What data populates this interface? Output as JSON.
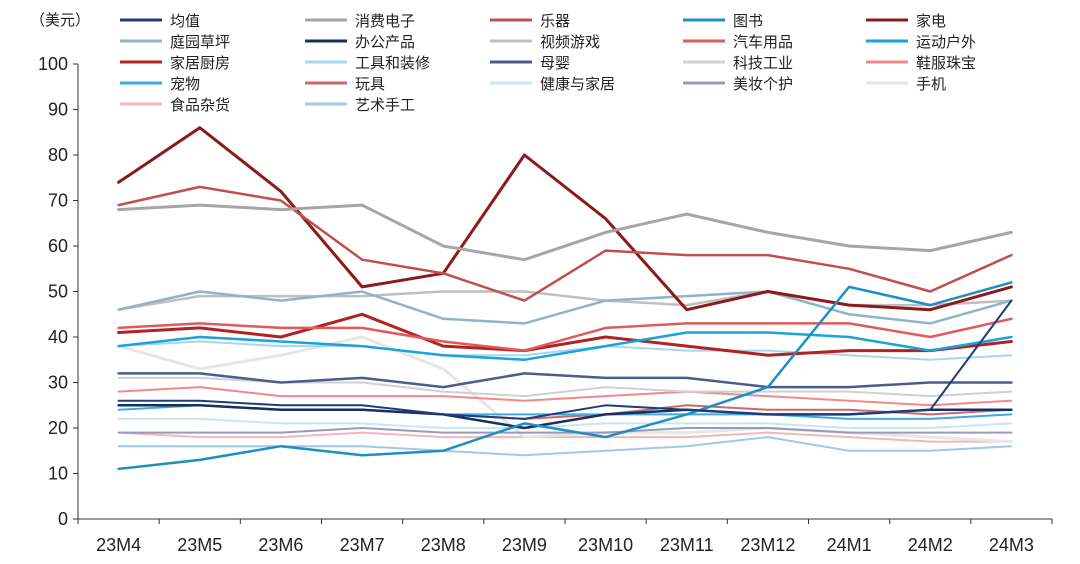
{
  "chart_data": {
    "type": "line",
    "unit": "（美元）",
    "categories": [
      "23M4",
      "23M5",
      "23M6",
      "23M7",
      "23M8",
      "23M9",
      "23M10",
      "23M11",
      "23M12",
      "24M1",
      "24M2",
      "24M3"
    ],
    "ylim": [
      0,
      100
    ],
    "yticks": [
      0,
      10,
      20,
      30,
      40,
      50,
      60,
      70,
      80,
      90,
      100
    ],
    "grid": false,
    "legend_position": "top",
    "series": [
      {
        "name": "均值",
        "color": "#1f3d7a",
        "width": 2,
        "values": [
          26,
          26,
          25,
          25,
          23,
          22,
          25,
          24,
          23,
          23,
          24,
          48
        ]
      },
      {
        "name": "消费电子",
        "color": "#a6a6a6",
        "width": 3,
        "values": [
          68,
          69,
          68,
          69,
          60,
          57,
          63,
          67,
          63,
          60,
          59,
          63
        ]
      },
      {
        "name": "乐器",
        "color": "#c0504d",
        "width": 2.5,
        "values": [
          69,
          73,
          70,
          57,
          54,
          48,
          59,
          58,
          58,
          55,
          50,
          58
        ]
      },
      {
        "name": "图书",
        "color": "#1f8ec1",
        "width": 2.5,
        "values": [
          11,
          13,
          16,
          14,
          15,
          21,
          18,
          23,
          29,
          51,
          47,
          52
        ]
      },
      {
        "name": "家电",
        "color": "#8b1a1a",
        "width": 3,
        "values": [
          74,
          86,
          72,
          51,
          54,
          80,
          66,
          46,
          50,
          47,
          46,
          51
        ]
      },
      {
        "name": "庭园草坪",
        "color": "#8db4c8",
        "width": 2.5,
        "values": [
          46,
          50,
          48,
          50,
          44,
          43,
          48,
          49,
          50,
          45,
          43,
          48
        ]
      },
      {
        "name": "办公产品",
        "color": "#17305e",
        "width": 2.5,
        "values": [
          25,
          25,
          24,
          24,
          23,
          20,
          23,
          24,
          23,
          23,
          24,
          24
        ]
      },
      {
        "name": "视频游戏",
        "color": "#bfbfbf",
        "width": 2.5,
        "values": [
          46,
          49,
          49,
          49,
          50,
          50,
          48,
          47,
          50,
          47,
          47,
          48
        ]
      },
      {
        "name": "汽车用品",
        "color": "#e05a5a",
        "width": 2.5,
        "values": [
          42,
          43,
          42,
          42,
          39,
          37,
          42,
          43,
          43,
          43,
          40,
          44
        ]
      },
      {
        "name": "运动户外",
        "color": "#1aa3d9",
        "width": 2.5,
        "values": [
          38,
          40,
          39,
          38,
          36,
          35,
          38,
          41,
          41,
          40,
          37,
          40
        ]
      },
      {
        "name": "家居厨房",
        "color": "#b22222",
        "width": 3,
        "values": [
          41,
          42,
          40,
          45,
          38,
          37,
          40,
          38,
          36,
          37,
          37,
          39
        ]
      },
      {
        "name": "工具和装修",
        "color": "#a9d6ee",
        "width": 2,
        "values": [
          38,
          39,
          38,
          38,
          36,
          36,
          38,
          37,
          37,
          36,
          35,
          36
        ]
      },
      {
        "name": "母婴",
        "color": "#4a5d8f",
        "width": 2.5,
        "values": [
          32,
          32,
          30,
          31,
          29,
          32,
          31,
          31,
          29,
          29,
          30,
          30
        ]
      },
      {
        "name": "科技工业",
        "color": "#d0d0d0",
        "width": 2,
        "values": [
          31,
          31,
          30,
          30,
          28,
          27,
          29,
          28,
          28,
          28,
          27,
          28
        ]
      },
      {
        "name": "鞋服珠宝",
        "color": "#f08a8a",
        "width": 2,
        "values": [
          28,
          29,
          27,
          27,
          27,
          26,
          27,
          28,
          27,
          26,
          25,
          26
        ]
      },
      {
        "name": "宠物",
        "color": "#3fa9e0",
        "width": 2,
        "values": [
          24,
          25,
          24,
          24,
          23,
          23,
          23,
          23,
          23,
          22,
          22,
          23
        ]
      },
      {
        "name": "玩具",
        "color": "#c96a6a",
        "width": 2,
        "values": [
          25,
          25,
          24,
          24,
          23,
          22,
          23,
          25,
          24,
          24,
          23,
          24
        ]
      },
      {
        "name": "健康与家居",
        "color": "#c7e6f7",
        "width": 2,
        "values": [
          22,
          22,
          21,
          21,
          20,
          20,
          21,
          21,
          21,
          20,
          20,
          21
        ]
      },
      {
        "name": "美妆个护",
        "color": "#9999b8",
        "width": 2,
        "values": [
          19,
          19,
          19,
          20,
          19,
          19,
          19,
          20,
          20,
          19,
          19,
          19
        ]
      },
      {
        "name": "手机",
        "color": "#e6e6e6",
        "width": 3,
        "values": [
          38,
          33,
          36,
          40,
          33,
          18,
          19,
          19,
          20,
          19,
          18,
          17
        ]
      },
      {
        "name": "食品杂货",
        "color": "#f4b6b6",
        "width": 2,
        "values": [
          19,
          18,
          18,
          19,
          18,
          18,
          18,
          18,
          19,
          18,
          17,
          17
        ]
      },
      {
        "name": "艺术手工",
        "color": "#9fc8ea",
        "width": 2,
        "values": [
          16,
          16,
          16,
          16,
          15,
          14,
          15,
          16,
          18,
          15,
          15,
          16
        ]
      }
    ]
  }
}
